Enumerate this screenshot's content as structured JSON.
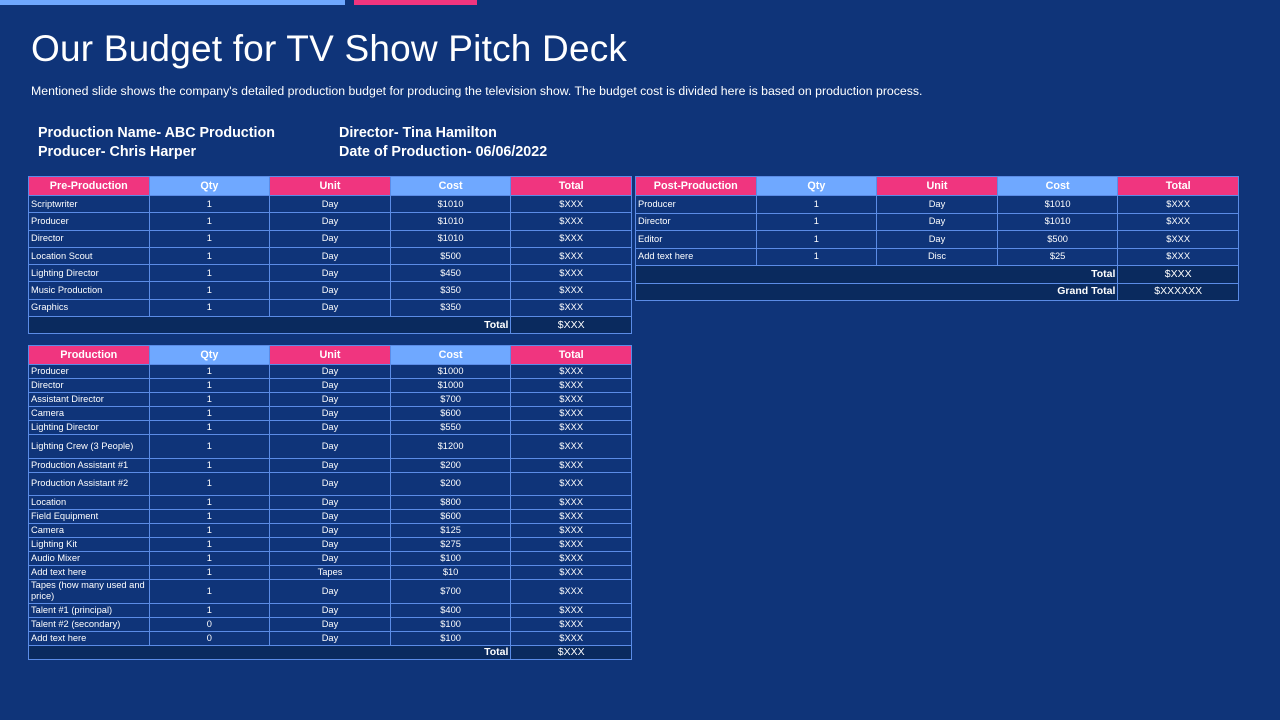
{
  "title": "Our Budget for TV Show Pitch Deck",
  "subtitle": "Mentioned slide shows the company's detailed production budget for producing the television show. The budget cost is divided  here is based on production process.",
  "info": {
    "production_name": "Production Name- ABC Production",
    "producer": "Producer- Chris Harper",
    "director": "Director- Tina Hamilton",
    "date": "Date of Production- 06/06/2022"
  },
  "columns": [
    "Qty",
    "Unit",
    "Cost",
    "Total"
  ],
  "pre_production": {
    "heading": "Pre-Production",
    "rows": [
      [
        "Scriptwriter",
        "1",
        "Day",
        "$1010",
        "$XXX"
      ],
      [
        "Producer",
        "1",
        "Day",
        "$1010",
        "$XXX"
      ],
      [
        "Director",
        "1",
        "Day",
        "$1010",
        "$XXX"
      ],
      [
        "Location Scout",
        "1",
        "Day",
        "$500",
        "$XXX"
      ],
      [
        "Lighting Director",
        "1",
        "Day",
        "$450",
        "$XXX"
      ],
      [
        "Music Production",
        "1",
        "Day",
        "$350",
        "$XXX"
      ],
      [
        "Graphics",
        "1",
        "Day",
        "$350",
        "$XXX"
      ]
    ],
    "total_label": "Total",
    "total_value": "$XXX"
  },
  "production": {
    "heading": "Production",
    "rows": [
      [
        "Producer",
        "1",
        "Day",
        "$1000",
        "$XXX"
      ],
      [
        "Director",
        "1",
        "Day",
        "$1000",
        "$XXX"
      ],
      [
        "Assistant Director",
        "1",
        "Day",
        "$700",
        "$XXX"
      ],
      [
        "Camera",
        "1",
        "Day",
        "$600",
        "$XXX"
      ],
      [
        "Lighting Director",
        "1",
        "Day",
        "$550",
        "$XXX"
      ],
      [
        "Lighting Crew (3 People)",
        "1",
        "Day",
        "$1200",
        "$XXX"
      ],
      [
        "Production Assistant #1",
        "1",
        "Day",
        "$200",
        "$XXX"
      ],
      [
        "Production Assistant #2",
        "1",
        "Day",
        "$200",
        "$XXX"
      ],
      [
        "Location",
        "1",
        "Day",
        "$800",
        "$XXX"
      ],
      [
        "Field Equipment",
        "1",
        "Day",
        "$600",
        "$XXX"
      ],
      [
        "Camera",
        "1",
        "Day",
        "$125",
        "$XXX"
      ],
      [
        "Lighting Kit",
        "1",
        "Day",
        "$275",
        "$XXX"
      ],
      [
        "Audio Mixer",
        "1",
        "Day",
        "$100",
        "$XXX"
      ],
      [
        "Add text here",
        "1",
        "Tapes",
        "$10",
        "$XXX"
      ],
      [
        "Tapes (how many used and price)",
        "1",
        "Day",
        "$700",
        "$XXX"
      ],
      [
        "Talent #1 (principal)",
        "1",
        "Day",
        "$400",
        "$XXX"
      ],
      [
        "Talent #2 (secondary)",
        "0",
        "Day",
        "$100",
        "$XXX"
      ],
      [
        "Add text here",
        "0",
        "Day",
        "$100",
        "$XXX"
      ]
    ],
    "total_label": "Total",
    "total_value": "$XXX"
  },
  "post_production": {
    "heading": "Post-Production",
    "rows": [
      [
        "Producer",
        "1",
        "Day",
        "$1010",
        "$XXX"
      ],
      [
        "Director",
        "1",
        "Day",
        "$1010",
        "$XXX"
      ],
      [
        "Editor",
        "1",
        "Day",
        "$500",
        "$XXX"
      ],
      [
        "Add text here",
        "1",
        "Disc",
        "$25",
        "$XXX"
      ]
    ],
    "total_label": "Total",
    "total_value": "$XXX",
    "grand_total_label": "Grand Total",
    "grand_total_value": "$XXXXXX"
  },
  "colors": {
    "background": "#0f3479",
    "pink": "#f0357f",
    "light_blue": "#6fa8ff",
    "total_row": "#0a2a5e"
  }
}
